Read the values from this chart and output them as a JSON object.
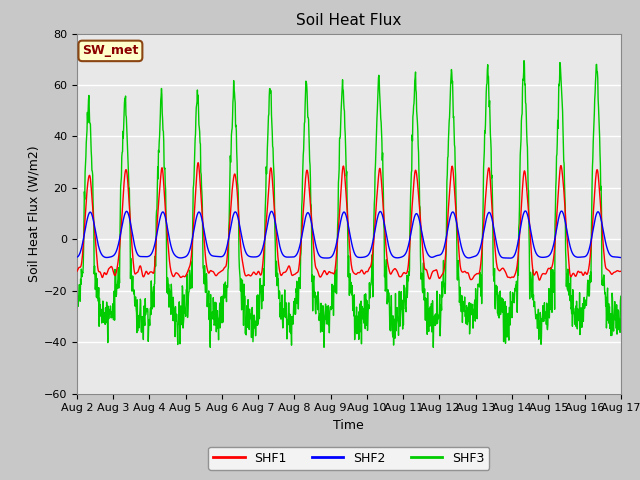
{
  "title": "Soil Heat Flux",
  "ylabel": "Soil Heat Flux (W/m2)",
  "xlabel": "Time",
  "ylim": [
    -60,
    80
  ],
  "yticks": [
    -60,
    -40,
    -20,
    0,
    20,
    40,
    60,
    80
  ],
  "date_labels": [
    "Aug 2",
    "Aug 3",
    "Aug 4",
    "Aug 5",
    "Aug 6",
    "Aug 7",
    "Aug 8",
    "Aug 9",
    "Aug 10",
    "Aug 11",
    "Aug 12",
    "Aug 13",
    "Aug 14",
    "Aug 15",
    "Aug 16",
    "Aug 17"
  ],
  "legend_entries": [
    "SHF1",
    "SHF2",
    "SHF3"
  ],
  "legend_colors": [
    "#ff0000",
    "#0000ff",
    "#00cc00"
  ],
  "sw_met_label": "SW_met",
  "plot_bg": "#e8e8e8",
  "fig_bg": "#c8c8c8",
  "title_fontsize": 11,
  "axis_label_fontsize": 9,
  "tick_fontsize": 8,
  "line_width": 1.0
}
